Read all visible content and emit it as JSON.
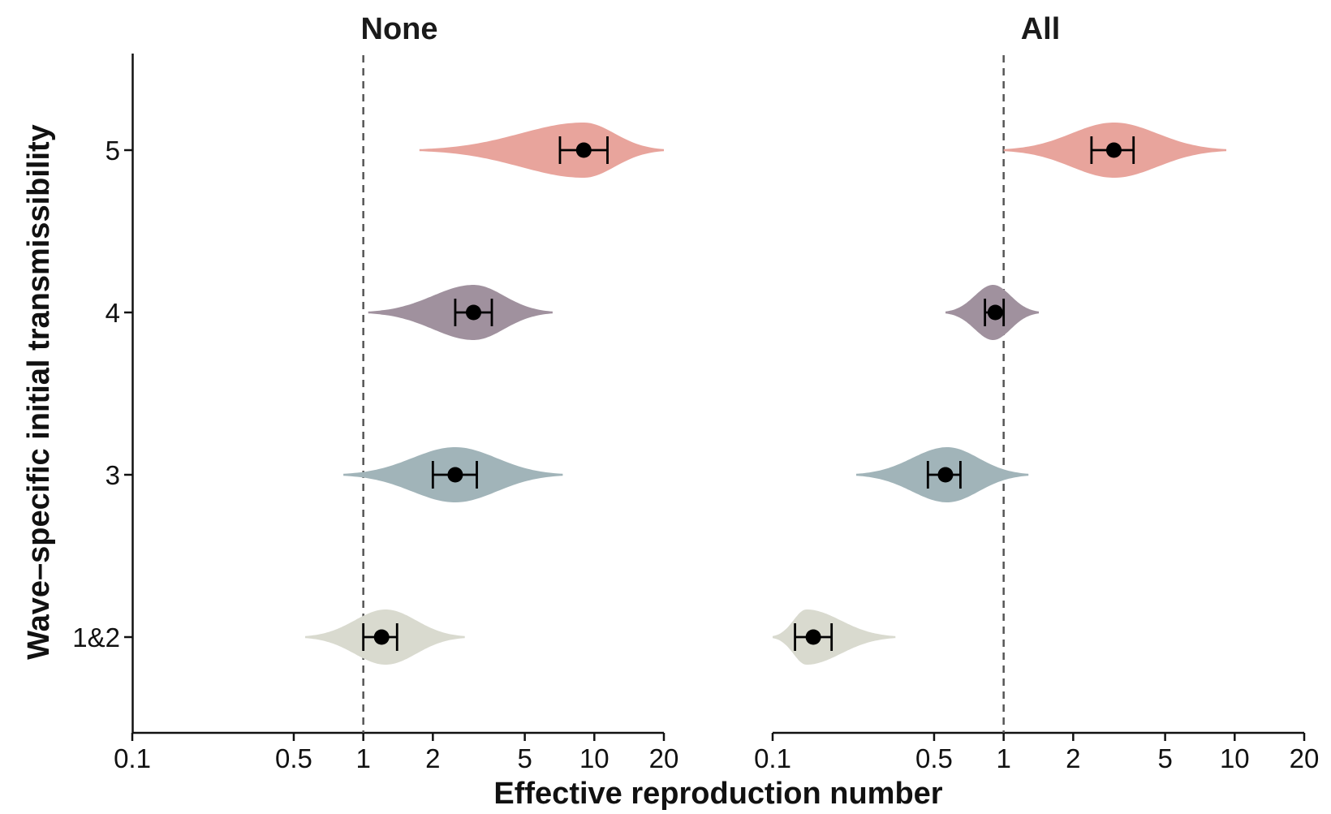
{
  "chart_data": {
    "type": "violin",
    "xlabel": "Effective reproduction number",
    "ylabel": "Wave–specific initial transmissibility",
    "x_scale": "log",
    "xlim": [
      0.1,
      20
    ],
    "x_ticks": [
      0.1,
      0.5,
      1,
      2,
      5,
      10,
      20
    ],
    "x_tick_labels": [
      "0.1",
      "0.5",
      "1",
      "2",
      "5",
      "10",
      "20"
    ],
    "categories": [
      "5",
      "4",
      "3",
      "1&2"
    ],
    "reference_line": 1,
    "colors": {
      "5": "#E8A49C",
      "4": "#A0919E",
      "3": "#A1B4B9",
      "1&2": "#D9DACF"
    },
    "panels": [
      {
        "title": "None",
        "series": [
          {
            "category": "5",
            "median": 9.0,
            "ci": [
              7.1,
              11.4
            ],
            "range": [
              1.75,
              20.0
            ],
            "mode": 9.0
          },
          {
            "category": "4",
            "median": 3.0,
            "ci": [
              2.5,
              3.6
            ],
            "range": [
              1.05,
              6.6
            ],
            "mode": 3.0
          },
          {
            "category": "3",
            "median": 2.5,
            "ci": [
              2.0,
              3.1
            ],
            "range": [
              0.82,
              7.3
            ],
            "mode": 2.5
          },
          {
            "category": "1&2",
            "median": 1.2,
            "ci": [
              1.0,
              1.4
            ],
            "range": [
              0.56,
              2.75
            ],
            "mode": 1.25
          }
        ]
      },
      {
        "title": "All",
        "series": [
          {
            "category": "5",
            "median": 3.0,
            "ci": [
              2.4,
              3.65
            ],
            "range": [
              1.0,
              9.2
            ],
            "mode": 3.0
          },
          {
            "category": "4",
            "median": 0.92,
            "ci": [
              0.83,
              1.0
            ],
            "range": [
              0.56,
              1.42
            ],
            "mode": 0.9
          },
          {
            "category": "3",
            "median": 0.56,
            "ci": [
              0.47,
              0.65
            ],
            "range": [
              0.23,
              1.28
            ],
            "mode": 0.57
          },
          {
            "category": "1&2",
            "median": 0.15,
            "ci": [
              0.125,
              0.18
            ],
            "range": [
              0.1,
              0.34
            ],
            "mode": 0.14
          }
        ]
      }
    ]
  }
}
